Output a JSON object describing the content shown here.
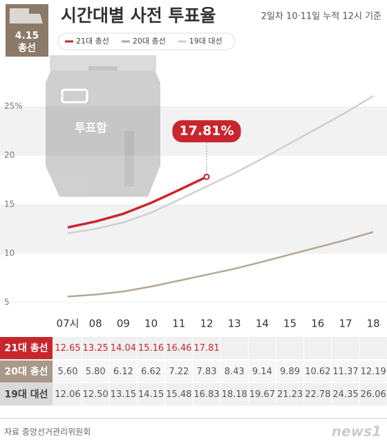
{
  "chart_data": {
    "type": "line",
    "badge": [
      "4.15",
      "총선"
    ],
    "title": "시간대별 사전 투표율",
    "subtitle": "2일차 10·11일 누적 12시 기준",
    "categories": [
      "07시",
      "08",
      "09",
      "10",
      "11",
      "12",
      "13",
      "14",
      "15",
      "16",
      "17",
      "18"
    ],
    "series": [
      {
        "name": "21대 총선",
        "color": "#c8262e",
        "values": [
          12.65,
          13.25,
          14.04,
          15.16,
          16.46,
          17.81,
          null,
          null,
          null,
          null,
          null,
          null
        ],
        "value_labels": [
          "12.65",
          "13.25",
          "14.04",
          "15.16",
          "16.46",
          "17.81",
          null,
          null,
          null,
          null,
          null,
          null
        ],
        "highlight_label": "17.81%"
      },
      {
        "name": "20대 총선",
        "color": "#b4a595",
        "values": [
          5.6,
          5.8,
          6.12,
          6.62,
          7.22,
          7.83,
          8.43,
          9.14,
          9.89,
          10.62,
          11.37,
          12.19
        ],
        "value_labels": [
          "5.60",
          "5.80",
          "6.12",
          "6.62",
          "7.22",
          "7.83",
          "8.43",
          "9.14",
          "9.89",
          "10.62",
          "11.37",
          "12.19"
        ]
      },
      {
        "name": "19대 대선",
        "color": "#cfcfcf",
        "values": [
          12.06,
          12.5,
          13.15,
          14.15,
          15.48,
          16.83,
          18.18,
          19.67,
          21.23,
          22.78,
          24.35,
          26.06
        ],
        "value_labels": [
          "12.06",
          "12.50",
          "13.15",
          "14.15",
          "15.48",
          "16.83",
          "18.18",
          "19.67",
          "21.23",
          "22.78",
          "24.35",
          "26.06"
        ]
      }
    ],
    "ylim": [
      3,
      27
    ],
    "yticks": [
      5,
      10,
      15,
      20,
      {
        "value": 25,
        "label": "25%"
      }
    ],
    "grid": true,
    "ballot_box_label": "투표함",
    "source": "자료 중앙선거관리위원회",
    "logo": "news1"
  }
}
